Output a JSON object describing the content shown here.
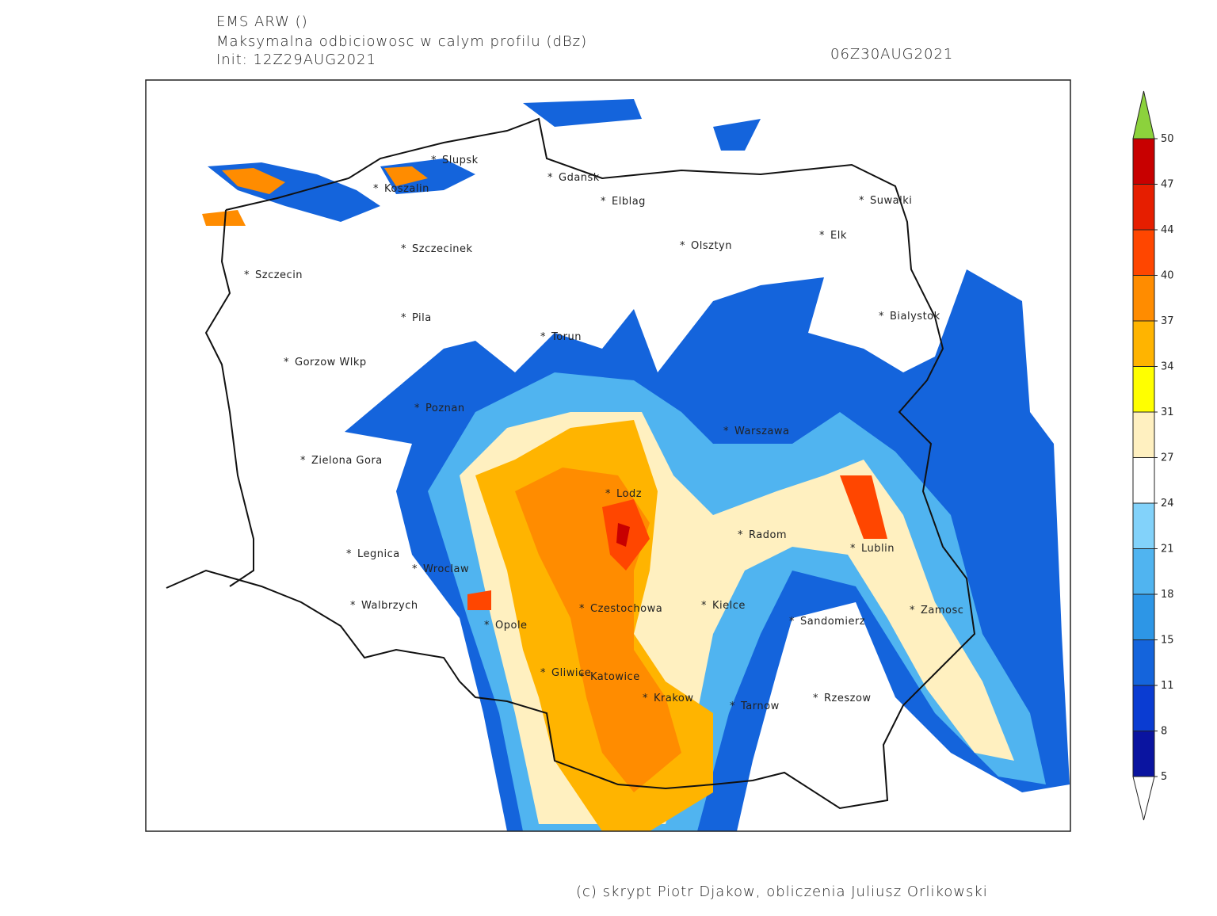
{
  "header": {
    "model": "EMS ARW ()",
    "field": "Maksymalna odbiciowosc w calym profilu (dBz)",
    "init": "Init: 12Z29AUG2021",
    "valid": "06Z30AUG2021"
  },
  "cities": [
    "Slupsk",
    "Gdansk",
    "Koszalin",
    "Elblag",
    "Suwalki",
    "Elk",
    "Olsztyn",
    "Szczecinek",
    "Szczecin",
    "Pila",
    "Bialystok",
    "Torun",
    "Gorzow Wlkp",
    "Poznan",
    "Warszawa",
    "Zielona Gora",
    "Lodz",
    "Radom",
    "Lublin",
    "Legnica",
    "Wroclaw",
    "Walbrzych",
    "Czestochowa",
    "Kielce",
    "Zamosc",
    "Sandomierz",
    "Opole",
    "Gliwice",
    "Katowice",
    "Krakow",
    "Tarnow",
    "Rzeszow"
  ],
  "colorbar": {
    "ticks": [
      5,
      8,
      11,
      15,
      18,
      21,
      24,
      27,
      31,
      34,
      37,
      40,
      44,
      47,
      50
    ],
    "colors": [
      "#0a14a0",
      "#0a3cd2",
      "#1464dc",
      "#2d96e6",
      "#50b4f0",
      "#82d2fa",
      "#ffffff",
      "#fff0c0",
      "#ffff00",
      "#ffb400",
      "#ff8c00",
      "#ff4600",
      "#e61e00",
      "#c80000"
    ],
    "over_color": "#8cd23c",
    "under_color": "#ffffff"
  },
  "footer": "(c) skrypt Piotr Djakow, obliczenia Juliusz Orlikowski"
}
